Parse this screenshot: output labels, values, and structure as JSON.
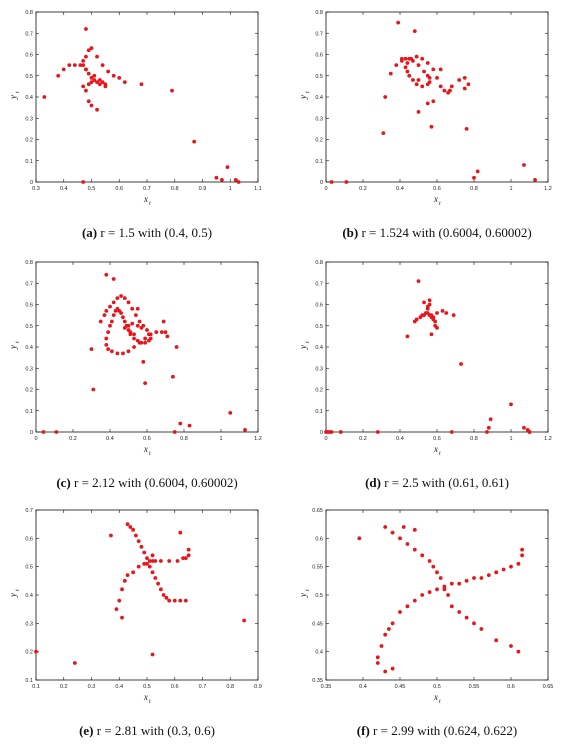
{
  "chart_data": [
    {
      "type": "scatter",
      "caption": {
        "label": "(a)",
        "text": "r = 1.5 with (0.4, 0.5)"
      },
      "xlabel": "x",
      "xlabel_sub": "t",
      "ylabel": "y",
      "ylabel_sub": "t",
      "xlim": [
        0.3,
        1.1
      ],
      "ylim": [
        0,
        0.8
      ],
      "xticks": [
        "0.3",
        "0.4",
        "0.5",
        "0.6",
        "0.7",
        "0.8",
        "0.9",
        "1",
        "1.1"
      ],
      "yticks": [
        "0",
        "0.1",
        "0.2",
        "0.3",
        "0.4",
        "0.5",
        "0.6",
        "0.7",
        "0.8"
      ],
      "x": [
        0.33,
        0.38,
        0.4,
        0.42,
        0.44,
        0.46,
        0.48,
        0.51,
        0.53,
        0.54,
        0.55,
        0.55,
        0.53,
        0.52,
        0.5,
        0.49,
        0.48,
        0.47,
        0.47,
        0.48,
        0.49,
        0.5,
        0.52,
        0.54,
        0.56,
        0.58,
        0.6,
        0.62,
        0.68,
        0.79,
        0.87,
        0.95,
        0.97,
        0.99,
        1.02,
        1.03,
        0.47,
        0.48,
        0.49,
        0.48,
        0.5,
        0.52,
        0.47,
        0.49,
        0.5,
        0.51
      ],
      "y": [
        0.4,
        0.5,
        0.53,
        0.55,
        0.55,
        0.55,
        0.53,
        0.5,
        0.48,
        0.47,
        0.46,
        0.45,
        0.46,
        0.47,
        0.49,
        0.51,
        0.53,
        0.55,
        0.57,
        0.59,
        0.62,
        0.63,
        0.59,
        0.55,
        0.52,
        0.5,
        0.49,
        0.47,
        0.46,
        0.43,
        0.19,
        0.02,
        0.01,
        0.07,
        0.01,
        0.0,
        0.0,
        0.72,
        0.38,
        0.43,
        0.36,
        0.34,
        0.45,
        0.46,
        0.47,
        0.48
      ]
    },
    {
      "type": "scatter",
      "caption": {
        "label": "(b)",
        "text": "r = 1.524 with (0.6004, 0.60002)"
      },
      "xlabel": "x",
      "xlabel_sub": "t",
      "ylabel": "y",
      "ylabel_sub": "t",
      "xlim": [
        0,
        1.2
      ],
      "ylim": [
        0,
        0.8
      ],
      "xticks": [
        "0",
        "0.2",
        "0.4",
        "0.6",
        "0.8",
        "1",
        "1.2"
      ],
      "yticks": [
        "0",
        "0.1",
        "0.2",
        "0.3",
        "0.4",
        "0.5",
        "0.6",
        "0.7",
        "0.8"
      ],
      "x": [
        0.03,
        0.11,
        0.31,
        0.32,
        0.35,
        0.38,
        0.41,
        0.43,
        0.45,
        0.47,
        0.5,
        0.53,
        0.55,
        0.56,
        0.56,
        0.55,
        0.52,
        0.49,
        0.47,
        0.45,
        0.44,
        0.43,
        0.44,
        0.46,
        0.49,
        0.52,
        0.55,
        0.58,
        0.6,
        0.62,
        0.64,
        0.66,
        0.67,
        0.68,
        0.72,
        0.75,
        0.75,
        0.76,
        0.77,
        0.8,
        0.82,
        1.07,
        1.13,
        0.39,
        0.41,
        0.48,
        0.5,
        0.55,
        0.58,
        0.57,
        0.5,
        0.62
      ],
      "y": [
        0.0,
        0.0,
        0.23,
        0.4,
        0.51,
        0.55,
        0.57,
        0.58,
        0.58,
        0.57,
        0.55,
        0.52,
        0.5,
        0.49,
        0.47,
        0.46,
        0.45,
        0.46,
        0.48,
        0.5,
        0.52,
        0.54,
        0.56,
        0.58,
        0.59,
        0.58,
        0.56,
        0.53,
        0.49,
        0.45,
        0.43,
        0.42,
        0.43,
        0.45,
        0.48,
        0.49,
        0.44,
        0.25,
        0.46,
        0.02,
        0.05,
        0.08,
        0.01,
        0.75,
        0.58,
        0.71,
        0.33,
        0.37,
        0.38,
        0.26,
        0.48,
        0.53
      ]
    },
    {
      "type": "scatter",
      "caption": {
        "label": "(c)",
        "text": "r = 2.12 with (0.6004, 0.60002)"
      },
      "xlabel": "x",
      "xlabel_sub": "t",
      "ylabel": "y",
      "ylabel_sub": "t",
      "xlim": [
        0,
        1.2
      ],
      "ylim": [
        0,
        0.8
      ],
      "xticks": [
        "0",
        "0.2",
        "0.4",
        "0.6",
        "0.8",
        "1",
        "1.2"
      ],
      "yticks": [
        "0",
        "0.1",
        "0.2",
        "0.3",
        "0.4",
        "0.5",
        "0.6",
        "0.7",
        "0.8"
      ],
      "x": [
        0.04,
        0.11,
        0.31,
        0.3,
        0.35,
        0.37,
        0.38,
        0.4,
        0.42,
        0.44,
        0.46,
        0.48,
        0.5,
        0.52,
        0.54,
        0.56,
        0.58,
        0.6,
        0.61,
        0.62,
        0.61,
        0.59,
        0.57,
        0.55,
        0.53,
        0.51,
        0.5,
        0.49,
        0.48,
        0.47,
        0.46,
        0.45,
        0.44,
        0.43,
        0.42,
        0.41,
        0.4,
        0.39,
        0.38,
        0.38,
        0.39,
        0.41,
        0.44,
        0.47,
        0.5,
        0.53,
        0.56,
        0.59,
        0.62,
        0.65,
        0.68,
        0.7,
        0.71,
        0.48,
        0.5,
        0.52,
        0.55,
        0.57,
        0.51,
        0.53,
        0.38,
        0.42,
        0.55,
        0.69,
        0.74,
        0.76,
        0.75,
        0.78,
        0.83,
        1.05,
        1.13,
        0.59,
        0.58
      ],
      "y": [
        0.0,
        0.0,
        0.2,
        0.39,
        0.52,
        0.55,
        0.57,
        0.59,
        0.61,
        0.63,
        0.64,
        0.63,
        0.61,
        0.58,
        0.55,
        0.52,
        0.5,
        0.48,
        0.46,
        0.44,
        0.43,
        0.42,
        0.42,
        0.43,
        0.44,
        0.46,
        0.48,
        0.5,
        0.52,
        0.54,
        0.56,
        0.57,
        0.58,
        0.57,
        0.55,
        0.52,
        0.5,
        0.47,
        0.44,
        0.41,
        0.39,
        0.38,
        0.37,
        0.37,
        0.38,
        0.4,
        0.42,
        0.44,
        0.46,
        0.47,
        0.47,
        0.47,
        0.45,
        0.49,
        0.5,
        0.51,
        0.5,
        0.49,
        0.47,
        0.46,
        0.74,
        0.72,
        0.58,
        0.52,
        0.26,
        0.4,
        0.0,
        0.04,
        0.03,
        0.09,
        0.01,
        0.23,
        0.33
      ]
    },
    {
      "type": "scatter",
      "caption": {
        "label": "(d)",
        "text": "r = 2.5 with (0.61, 0.61)"
      },
      "xlabel": "x",
      "xlabel_sub": "t",
      "ylabel": "y",
      "ylabel_sub": "t",
      "xlim": [
        0,
        1.2
      ],
      "ylim": [
        0,
        0.8
      ],
      "xticks": [
        "0",
        "0.2",
        "0.4",
        "0.6",
        "0.8",
        "1",
        "1.2"
      ],
      "yticks": [
        "0",
        "0.1",
        "0.2",
        "0.3",
        "0.4",
        "0.5",
        "0.6",
        "0.7",
        "0.8"
      ],
      "x": [
        0.0,
        0.01,
        0.02,
        0.03,
        0.08,
        0.28,
        0.44,
        0.48,
        0.49,
        0.51,
        0.52,
        0.53,
        0.54,
        0.55,
        0.56,
        0.57,
        0.58,
        0.58,
        0.59,
        0.6,
        0.55,
        0.56,
        0.57,
        0.57,
        0.6,
        0.63,
        0.65,
        0.69,
        0.73,
        0.68,
        0.87,
        0.88,
        0.89,
        1.0,
        1.07,
        1.09,
        1.1,
        1.1,
        0.55,
        0.56,
        0.53,
        0.59,
        0.5
      ],
      "y": [
        0.0,
        0.0,
        0.0,
        0.0,
        0.0,
        0.0,
        0.45,
        0.52,
        0.53,
        0.54,
        0.55,
        0.55,
        0.56,
        0.56,
        0.55,
        0.55,
        0.54,
        0.53,
        0.52,
        0.49,
        0.58,
        0.6,
        0.54,
        0.46,
        0.56,
        0.57,
        0.56,
        0.55,
        0.32,
        0.0,
        0.0,
        0.02,
        0.06,
        0.13,
        0.02,
        0.01,
        0.0,
        0.0,
        0.59,
        0.62,
        0.61,
        0.5,
        0.71
      ]
    },
    {
      "type": "scatter",
      "caption": {
        "label": "(e)",
        "text": "r = 2.81 with (0.3, 0.6)"
      },
      "xlabel": "x",
      "xlabel_sub": "t",
      "ylabel": "y",
      "ylabel_sub": "t",
      "xlim": [
        0.1,
        0.9
      ],
      "ylim": [
        0.1,
        0.7
      ],
      "xticks": [
        "0.1",
        "0.2",
        "0.3",
        "0.4",
        "0.5",
        "0.6",
        "0.7",
        "0.8",
        "0.9"
      ],
      "yticks": [
        "0.1",
        "0.2",
        "0.3",
        "0.4",
        "0.5",
        "0.6",
        "0.7"
      ],
      "x": [
        0.1,
        0.24,
        0.37,
        0.39,
        0.4,
        0.41,
        0.42,
        0.43,
        0.45,
        0.47,
        0.49,
        0.5,
        0.51,
        0.52,
        0.53,
        0.55,
        0.58,
        0.61,
        0.63,
        0.64,
        0.65,
        0.65,
        0.43,
        0.44,
        0.45,
        0.46,
        0.47,
        0.48,
        0.49,
        0.5,
        0.51,
        0.52,
        0.53,
        0.54,
        0.55,
        0.56,
        0.57,
        0.58,
        0.6,
        0.62,
        0.64,
        0.52,
        0.85,
        0.62,
        0.52,
        0.41
      ],
      "y": [
        0.2,
        0.16,
        0.61,
        0.35,
        0.38,
        0.42,
        0.45,
        0.47,
        0.48,
        0.5,
        0.51,
        0.51,
        0.52,
        0.52,
        0.52,
        0.52,
        0.52,
        0.52,
        0.53,
        0.53,
        0.54,
        0.56,
        0.65,
        0.64,
        0.63,
        0.61,
        0.59,
        0.57,
        0.55,
        0.53,
        0.5,
        0.48,
        0.46,
        0.44,
        0.42,
        0.4,
        0.39,
        0.38,
        0.38,
        0.38,
        0.38,
        0.19,
        0.31,
        0.62,
        0.54,
        0.32
      ]
    },
    {
      "type": "scatter",
      "caption": {
        "label": "(f)",
        "text": "r = 2.99 with (0.624, 0.622)"
      },
      "xlabel": "x",
      "xlabel_sub": "t",
      "ylabel": "y",
      "ylabel_sub": "t",
      "xlim": [
        0.35,
        0.65
      ],
      "ylim": [
        0.35,
        0.65
      ],
      "xticks": [
        "0.35",
        "0.4",
        "0.45",
        "0.5",
        "0.55",
        "0.6",
        "0.65"
      ],
      "yticks": [
        "0.35",
        "0.4",
        "0.45",
        "0.5",
        "0.55",
        "0.6",
        "0.65"
      ],
      "x": [
        0.395,
        0.42,
        0.42,
        0.425,
        0.43,
        0.435,
        0.44,
        0.45,
        0.46,
        0.47,
        0.48,
        0.49,
        0.5,
        0.51,
        0.52,
        0.53,
        0.54,
        0.55,
        0.56,
        0.57,
        0.58,
        0.59,
        0.6,
        0.61,
        0.615,
        0.615,
        0.43,
        0.44,
        0.45,
        0.46,
        0.47,
        0.48,
        0.49,
        0.495,
        0.5,
        0.505,
        0.51,
        0.515,
        0.52,
        0.53,
        0.54,
        0.55,
        0.56,
        0.58,
        0.6,
        0.61,
        0.43,
        0.44,
        0.455,
        0.47
      ],
      "y": [
        0.6,
        0.38,
        0.39,
        0.41,
        0.43,
        0.44,
        0.45,
        0.47,
        0.48,
        0.49,
        0.5,
        0.505,
        0.51,
        0.515,
        0.52,
        0.52,
        0.525,
        0.53,
        0.53,
        0.535,
        0.54,
        0.545,
        0.55,
        0.555,
        0.57,
        0.58,
        0.62,
        0.61,
        0.6,
        0.59,
        0.58,
        0.57,
        0.56,
        0.55,
        0.54,
        0.53,
        0.51,
        0.5,
        0.48,
        0.47,
        0.46,
        0.45,
        0.44,
        0.42,
        0.41,
        0.4,
        0.365,
        0.37,
        0.62,
        0.615
      ]
    }
  ]
}
